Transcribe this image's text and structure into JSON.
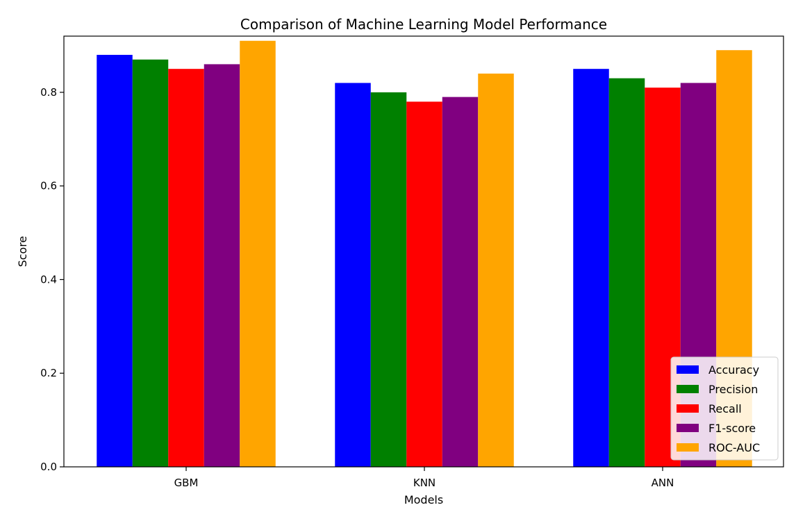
{
  "chart_data": {
    "type": "bar",
    "title": "Comparison of Machine Learning Model Performance",
    "xlabel": "Models",
    "ylabel": "Score",
    "categories": [
      "GBM",
      "KNN",
      "ANN"
    ],
    "ylim": [
      0,
      0.92
    ],
    "yticks": [
      "0.0",
      "0.2",
      "0.4",
      "0.6",
      "0.8"
    ],
    "grid": false,
    "legend_position": "bottom-right",
    "series": [
      {
        "name": "Accuracy",
        "color": "#0000ff",
        "values": [
          0.88,
          0.82,
          0.85
        ]
      },
      {
        "name": "Precision",
        "color": "#008000",
        "values": [
          0.87,
          0.8,
          0.83
        ]
      },
      {
        "name": "Recall",
        "color": "#ff0000",
        "values": [
          0.85,
          0.78,
          0.81
        ]
      },
      {
        "name": "F1-score",
        "color": "#800080",
        "values": [
          0.86,
          0.79,
          0.82
        ]
      },
      {
        "name": "ROC-AUC",
        "color": "#ffa500",
        "values": [
          0.91,
          0.84,
          0.89
        ]
      }
    ]
  }
}
